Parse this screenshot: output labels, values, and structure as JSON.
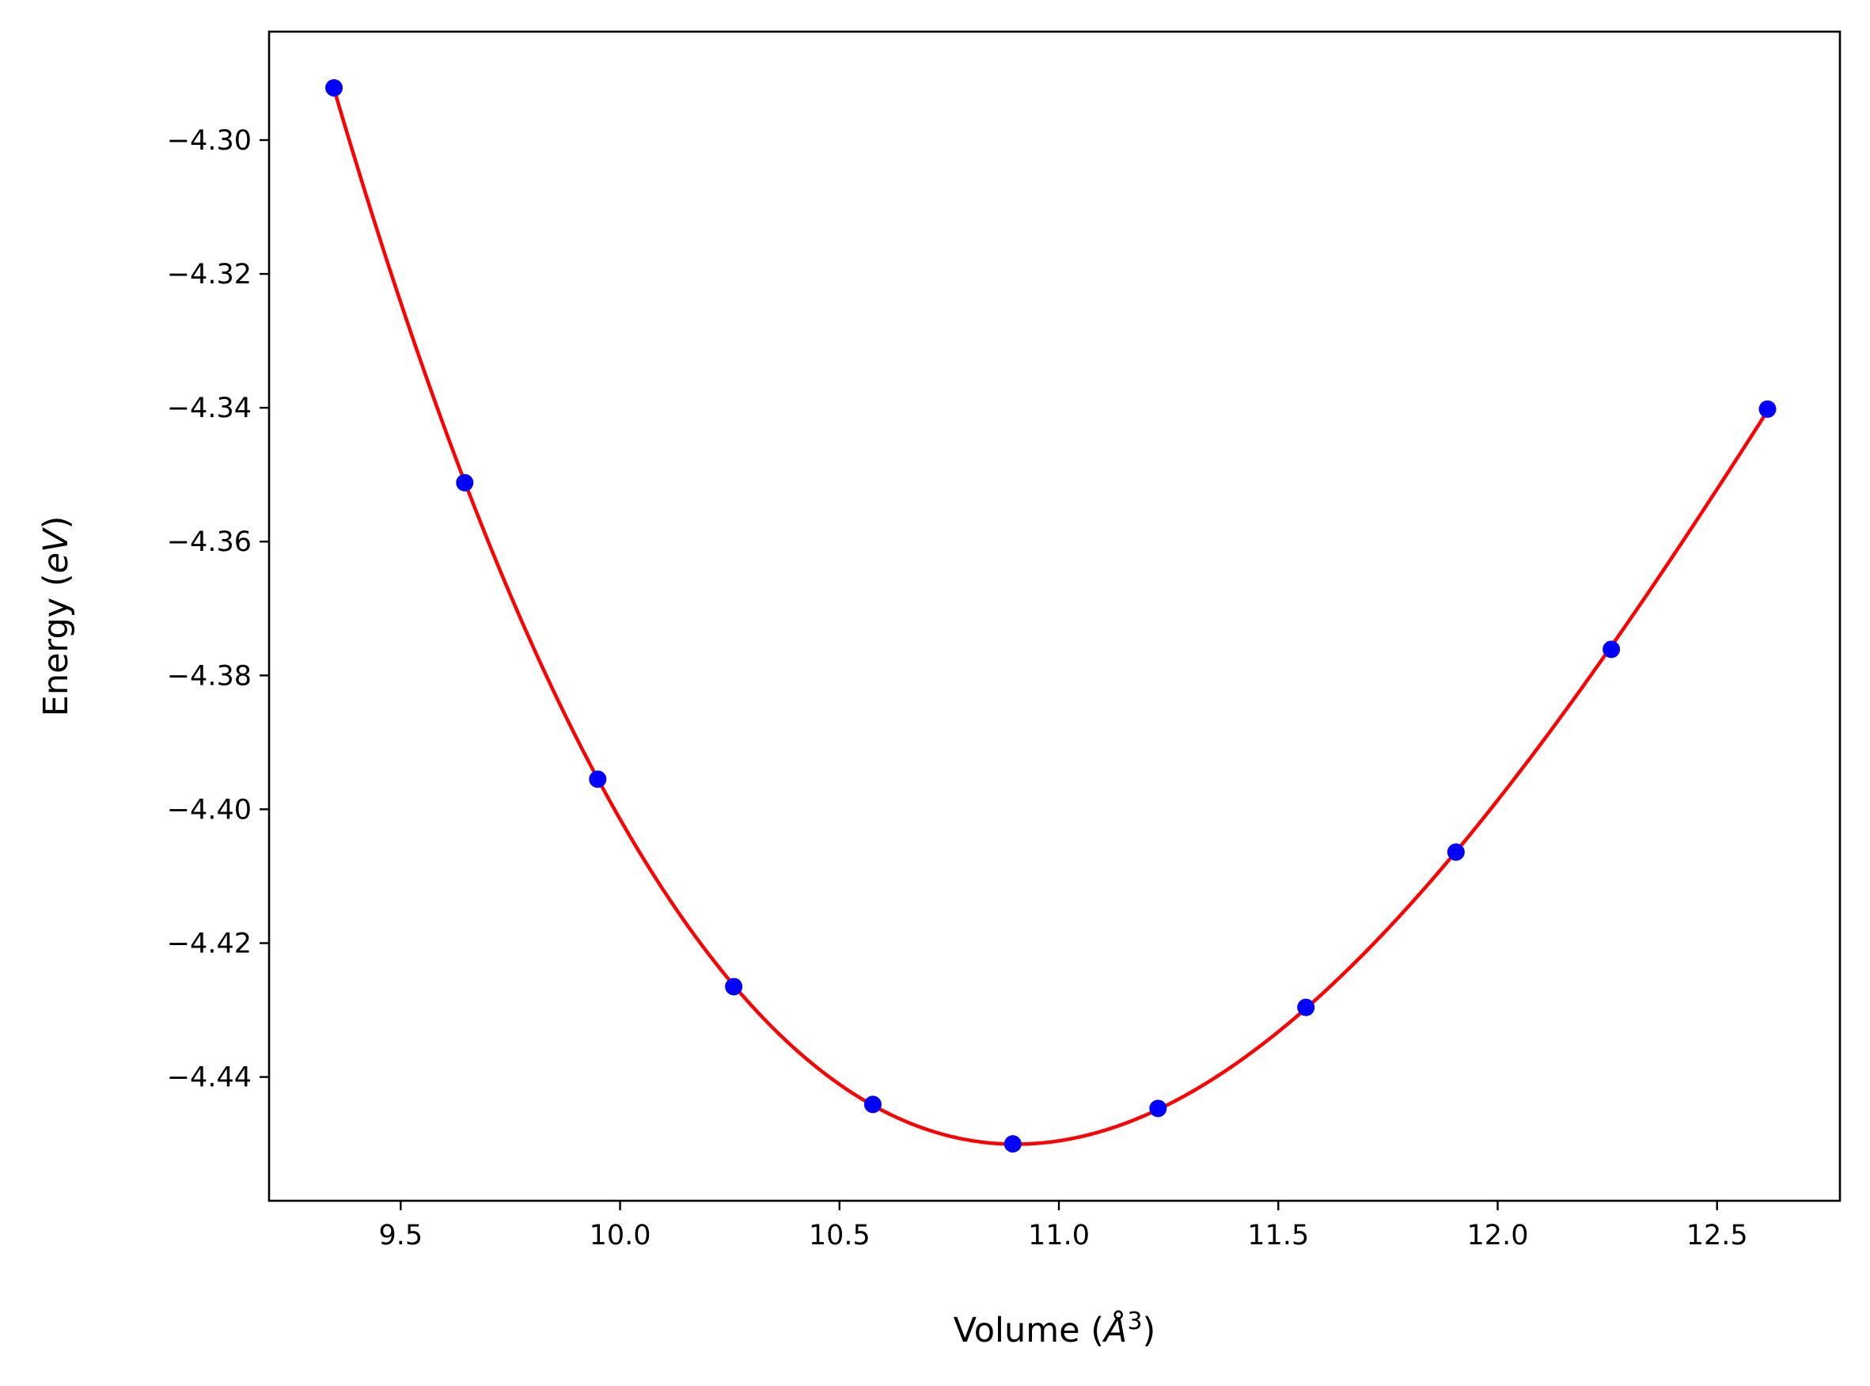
{
  "chart_data": {
    "type": "line",
    "title": "",
    "xlabel": "Volume (Å3)",
    "ylabel": "Energy (eV)",
    "xlim": [
      9.2,
      12.78
    ],
    "ylim": [
      -4.4585,
      -4.2838
    ],
    "x_ticks": [
      9.5,
      10.0,
      10.5,
      11.0,
      11.5,
      12.0,
      12.5
    ],
    "x_tick_labels": [
      "9.5",
      "10.0",
      "10.5",
      "11.0",
      "11.5",
      "12.0",
      "12.5"
    ],
    "y_ticks": [
      -4.3,
      -4.32,
      -4.34,
      -4.36,
      -4.38,
      -4.4,
      -4.42,
      -4.44
    ],
    "y_tick_labels": [
      "−4.30",
      "−4.32",
      "−4.34",
      "−4.36",
      "−4.38",
      "−4.40",
      "−4.42",
      "−4.44"
    ],
    "grid": false,
    "legend": "none",
    "series": [
      {
        "kind": "scatter",
        "color": "#0000ff",
        "x": [
          9.348,
          9.646,
          9.949,
          10.259,
          10.576,
          10.895,
          11.226,
          11.563,
          11.905,
          12.259,
          12.615
        ],
        "y": [
          -4.2922,
          -4.3512,
          -4.3955,
          -4.4265,
          -4.4441,
          -4.45,
          -4.4447,
          -4.4296,
          -4.4064,
          -4.3761,
          -4.3402
        ]
      },
      {
        "kind": "fit-curve",
        "color": "#ff0000",
        "x": [
          9.348,
          9.646,
          9.949,
          10.259,
          10.576,
          10.895,
          11.226,
          11.563,
          11.905,
          12.259,
          12.615
        ],
        "y": [
          -4.2922,
          -4.3512,
          -4.3955,
          -4.4265,
          -4.4441,
          -4.45,
          -4.4447,
          -4.4296,
          -4.4064,
          -4.3761,
          -4.3402
        ]
      }
    ]
  }
}
